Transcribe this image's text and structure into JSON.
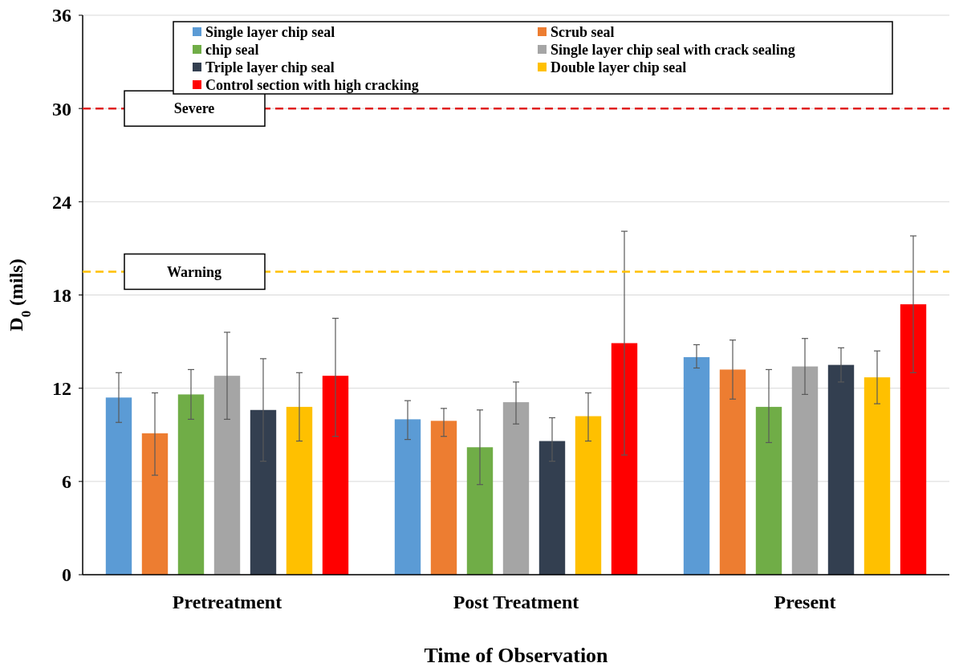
{
  "chart_data": {
    "type": "bar",
    "xlabel": "Time of Observation",
    "ylabel": "D$_{0}$ (mils)",
    "categories": [
      "Pretreatment",
      "Post Treatment",
      "Present"
    ],
    "ylim": [
      0,
      36
    ],
    "yticks": [
      0,
      6,
      12,
      18,
      24,
      30,
      36
    ],
    "grid": "y",
    "legend": "top",
    "series": [
      {
        "name": "Single layer chip seal",
        "color": "#5b9bd5",
        "values": [
          11.4,
          10.0,
          14.0
        ],
        "errors": [
          [
            9.8,
            13.0
          ],
          [
            8.7,
            11.2
          ],
          [
            13.3,
            14.8
          ]
        ]
      },
      {
        "name": "Scrub seal",
        "color": "#ed7d31",
        "values": [
          9.1,
          9.9,
          13.2
        ],
        "errors": [
          [
            6.4,
            11.7
          ],
          [
            8.9,
            10.7
          ],
          [
            11.3,
            15.1
          ]
        ]
      },
      {
        "name": "chip seal",
        "color": "#70ad47",
        "values": [
          11.6,
          8.2,
          10.8
        ],
        "errors": [
          [
            10.0,
            13.2
          ],
          [
            5.8,
            10.6
          ],
          [
            8.5,
            13.2
          ]
        ]
      },
      {
        "name": "Single layer chip seal with crack sealing",
        "color": "#a5a5a5",
        "values": [
          12.8,
          11.1,
          13.4
        ],
        "errors": [
          [
            10.0,
            15.6
          ],
          [
            9.7,
            12.4
          ],
          [
            11.6,
            15.2
          ]
        ]
      },
      {
        "name": "Triple layer chip seal",
        "color": "#333f50",
        "values": [
          10.6,
          8.6,
          13.5
        ],
        "errors": [
          [
            7.3,
            13.9
          ],
          [
            7.3,
            10.1
          ],
          [
            12.4,
            14.6
          ]
        ]
      },
      {
        "name": "Double layer chip seal",
        "color": "#ffc000",
        "values": [
          10.8,
          10.2,
          12.7
        ],
        "errors": [
          [
            8.6,
            13.0
          ],
          [
            8.6,
            11.7
          ],
          [
            11.0,
            14.4
          ]
        ]
      },
      {
        "name": "Control section with high cracking",
        "color": "#ff0000",
        "values": [
          12.8,
          14.9,
          17.4
        ],
        "errors": [
          [
            8.9,
            16.5
          ],
          [
            7.7,
            22.1
          ],
          [
            13.0,
            21.8
          ]
        ]
      }
    ],
    "ref_lines": [
      {
        "axis": "y",
        "value": 30,
        "label": "Severe",
        "color": "#e02020",
        "line_style": "dashed"
      },
      {
        "axis": "y",
        "value": 19.5,
        "label": "Warning",
        "color": "#ffc000",
        "line_style": "dashed"
      }
    ]
  }
}
